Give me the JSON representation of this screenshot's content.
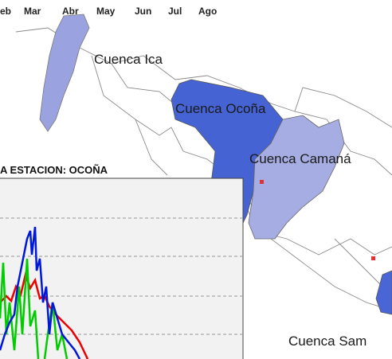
{
  "months": [
    "eb",
    "Mar",
    "Abr",
    "May",
    "Jun",
    "Jul",
    "Ago"
  ],
  "map": {
    "labels": [
      "Cuenca Ica",
      "Cuenca Ocoña",
      "Cuenca Camaná",
      "Cuenca Sam"
    ]
  },
  "chart": {
    "title": "A ESTACION:  OCOÑA"
  }
}
